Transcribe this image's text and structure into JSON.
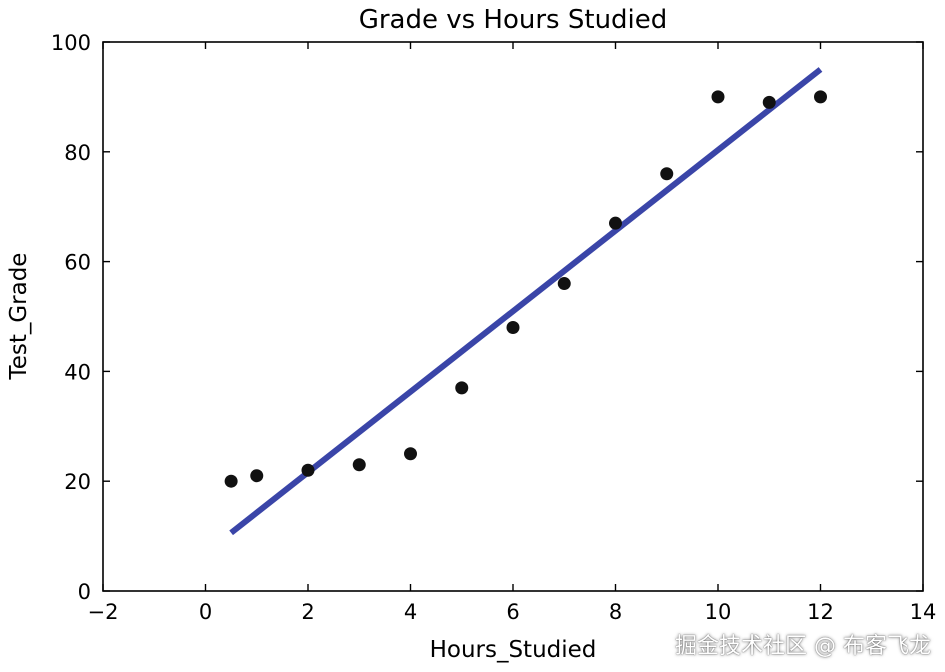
{
  "chart_data": {
    "type": "scatter",
    "title": "Grade vs Hours Studied",
    "xlabel": "Hours_Studied",
    "ylabel": "Test_Grade",
    "xlim": [
      -2,
      14
    ],
    "ylim": [
      0,
      100
    ],
    "xticks": [
      -2,
      0,
      2,
      4,
      6,
      8,
      10,
      12,
      14
    ],
    "yticks": [
      0,
      20,
      40,
      60,
      80,
      100
    ],
    "xtick_labels": [
      "−2",
      "0",
      "2",
      "4",
      "6",
      "8",
      "10",
      "12",
      "14"
    ],
    "ytick_labels": [
      "0",
      "20",
      "40",
      "60",
      "80",
      "100"
    ],
    "grid": false,
    "series": [
      {
        "type": "scatter",
        "color": "#111111",
        "points": [
          {
            "x": 0.5,
            "y": 20
          },
          {
            "x": 1,
            "y": 21
          },
          {
            "x": 2,
            "y": 22
          },
          {
            "x": 3,
            "y": 23
          },
          {
            "x": 4,
            "y": 25
          },
          {
            "x": 5,
            "y": 37
          },
          {
            "x": 6,
            "y": 48
          },
          {
            "x": 7,
            "y": 56
          },
          {
            "x": 8,
            "y": 67
          },
          {
            "x": 9,
            "y": 76
          },
          {
            "x": 10,
            "y": 90
          },
          {
            "x": 11,
            "y": 89
          },
          {
            "x": 12,
            "y": 90
          }
        ]
      },
      {
        "type": "line",
        "color": "#3a45a8",
        "points": [
          {
            "x": 0.5,
            "y": 10.6
          },
          {
            "x": 12,
            "y": 95
          }
        ]
      }
    ]
  },
  "watermark": "掘金技术社区 @ 布客飞龙"
}
